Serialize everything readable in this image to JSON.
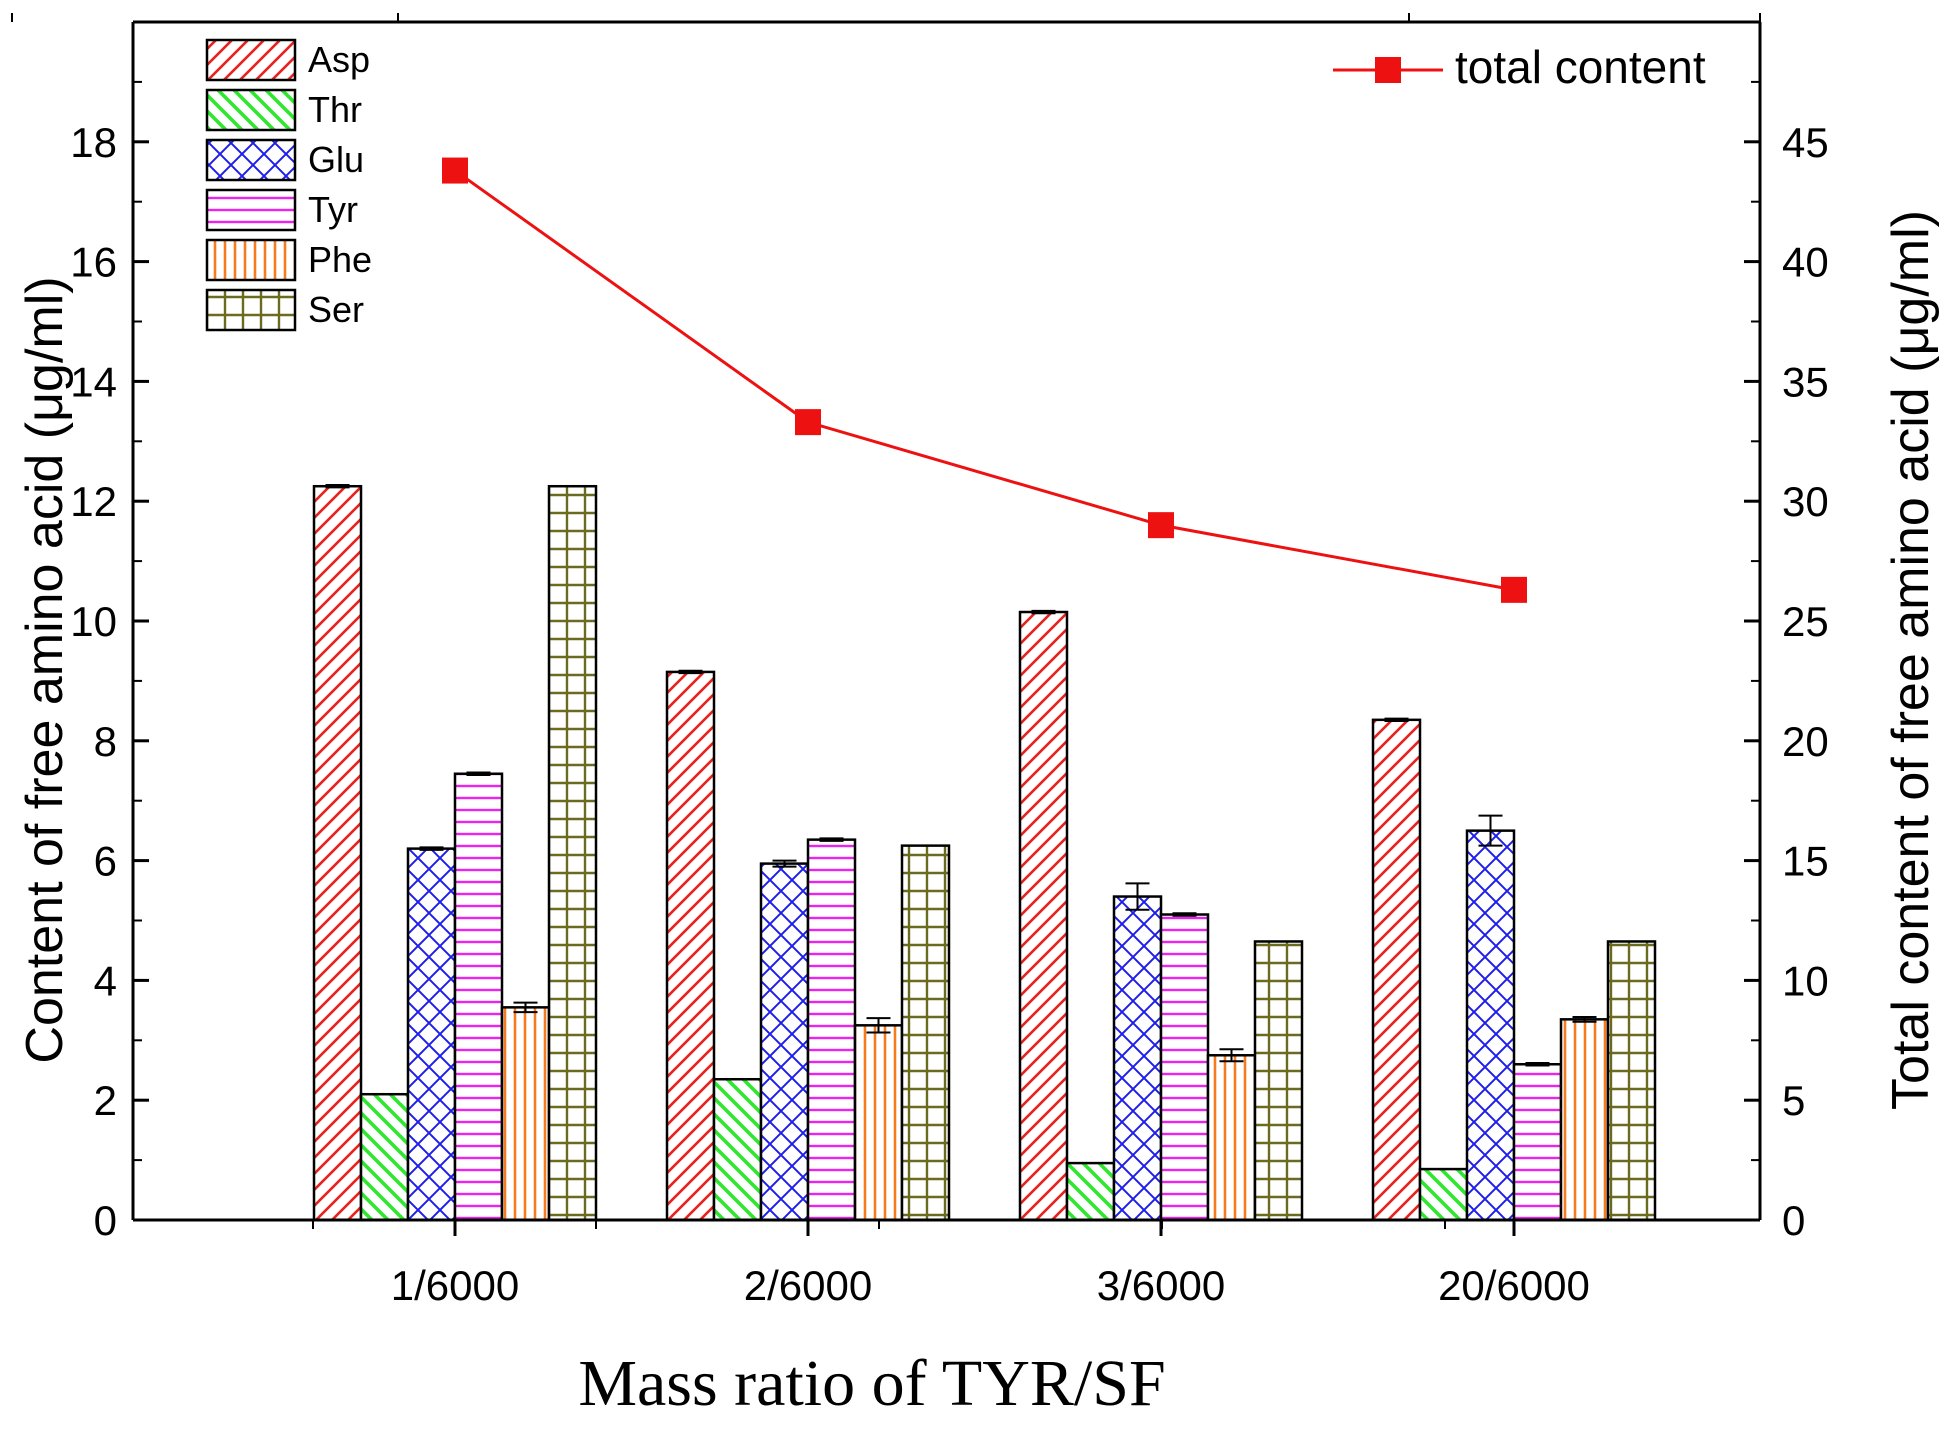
{
  "chart_data": {
    "type": "bar",
    "xlabel": "Mass ratio of TYR/SF",
    "ylabel": "Content of free amino acid (μg/ml)",
    "y2label": "Total content of free amino acid (μg/ml)",
    "categories": [
      "1/6000",
      "2/6000",
      "3/6000",
      "20/6000"
    ],
    "ylim": [
      0,
      20
    ],
    "y_ticks": [
      0,
      2,
      4,
      6,
      8,
      10,
      12,
      14,
      16,
      18
    ],
    "y2lim": [
      0,
      50
    ],
    "y2_ticks": [
      0,
      5,
      10,
      15,
      20,
      25,
      30,
      35,
      40,
      45
    ],
    "series": [
      {
        "name": "Asp",
        "color": "#e8231f",
        "pattern": "diag-right",
        "values": [
          12.25,
          9.15,
          10.15,
          8.35
        ],
        "errors": [
          0.02,
          0.02,
          0.02,
          0.02
        ]
      },
      {
        "name": "Thr",
        "color": "#2ee82e",
        "pattern": "diag-left",
        "values": [
          2.1,
          2.35,
          0.95,
          0.85
        ],
        "errors": [
          0.0,
          0.0,
          0.0,
          0.0
        ]
      },
      {
        "name": "Glu",
        "color": "#1f1fe8",
        "pattern": "cross",
        "values": [
          6.2,
          5.95,
          5.4,
          6.5
        ],
        "errors": [
          0.02,
          0.05,
          0.22,
          0.25
        ]
      },
      {
        "name": "Tyr",
        "color": "#ee22ee",
        "pattern": "horizontal",
        "values": [
          7.45,
          6.35,
          5.1,
          2.6
        ],
        "errors": [
          0.02,
          0.02,
          0.02,
          0.02
        ]
      },
      {
        "name": "Phe",
        "color": "#f57b1e",
        "pattern": "vertical",
        "values": [
          3.55,
          3.25,
          2.75,
          3.35
        ],
        "errors": [
          0.08,
          0.12,
          0.1,
          0.04
        ]
      },
      {
        "name": "Ser",
        "color": "#6b6b1f",
        "pattern": "grid",
        "values": [
          12.25,
          6.25,
          4.65,
          4.65
        ],
        "errors": [
          0.0,
          0.0,
          0.0,
          0.0
        ]
      }
    ],
    "line_series": {
      "name": "total content",
      "color": "#ee1111",
      "axis": "right",
      "values": [
        43.8,
        33.3,
        29.0,
        26.3
      ]
    },
    "legend_position": "top-left",
    "line_legend_position": "top-right"
  }
}
